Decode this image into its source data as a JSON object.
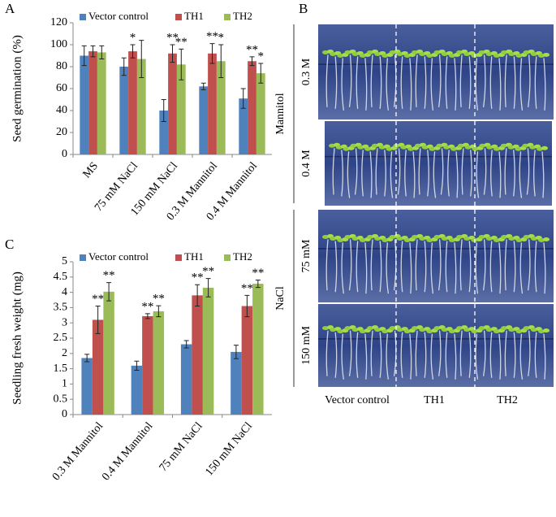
{
  "chart_data": [
    {
      "type": "bar",
      "panel_label": "A",
      "y_label": "Seed germination (%)",
      "categories": [
        "MS",
        "75 mM NaCl",
        "150 mM NaCl",
        "0.3 M Mannitol",
        "0.4 M Mannitol"
      ],
      "series": [
        {
          "name": "Vector control",
          "color": "#4f81bd",
          "values": [
            90,
            80,
            40,
            62,
            51
          ],
          "errors": [
            9,
            8,
            10,
            3,
            9
          ],
          "significance": [
            null,
            null,
            null,
            null,
            null
          ]
        },
        {
          "name": "TH1",
          "color": "#c0504d",
          "values": [
            94,
            94,
            92,
            92,
            85
          ],
          "errors": [
            5,
            6,
            8,
            9,
            4
          ],
          "significance": [
            null,
            "*",
            "**",
            "**",
            "**"
          ]
        },
        {
          "name": "TH2",
          "color": "#9bbb59",
          "values": [
            93,
            87,
            82,
            85,
            74
          ],
          "errors": [
            6,
            17,
            14,
            15,
            9
          ],
          "significance": [
            null,
            null,
            "**",
            "*",
            "*"
          ]
        }
      ],
      "ylim": [
        0,
        120
      ],
      "yticks": [
        0,
        20,
        40,
        60,
        80,
        100,
        120
      ],
      "legend": "top"
    },
    {
      "type": "bar",
      "panel_label": "C",
      "y_label": "Seedling fresh weight (mg)",
      "categories": [
        "0.3 M Mannitol",
        "0.4 M Mannitol",
        "75 mM NaCl",
        "150 mM NaCl"
      ],
      "series": [
        {
          "name": "Vector control",
          "color": "#4f81bd",
          "values": [
            1.85,
            1.6,
            2.3,
            2.05
          ],
          "errors": [
            0.12,
            0.15,
            0.12,
            0.22
          ],
          "significance": [
            null,
            null,
            null,
            null
          ]
        },
        {
          "name": "TH1",
          "color": "#c0504d",
          "values": [
            3.1,
            3.22,
            3.9,
            3.55
          ],
          "errors": [
            0.45,
            0.08,
            0.35,
            0.35
          ],
          "significance": [
            "**",
            "**",
            "**",
            "**"
          ]
        },
        {
          "name": "TH2",
          "color": "#9bbb59",
          "values": [
            4.02,
            3.38,
            4.15,
            4.28
          ],
          "errors": [
            0.3,
            0.18,
            0.3,
            0.12
          ],
          "significance": [
            "**",
            "**",
            "**",
            "**"
          ]
        }
      ],
      "ylim": [
        0,
        5
      ],
      "yticks": [
        0,
        0.5,
        1,
        1.5,
        2,
        2.5,
        3,
        3.5,
        4,
        4.5,
        5
      ],
      "legend": "top"
    }
  ],
  "panel_b": {
    "label": "B",
    "groups": [
      "Mannitol",
      "NaCl"
    ],
    "rows": [
      "0.3 M",
      "0.4 M",
      "75 mM",
      "150 mM"
    ],
    "columns": [
      "Vector control",
      "TH1",
      "TH2"
    ]
  }
}
